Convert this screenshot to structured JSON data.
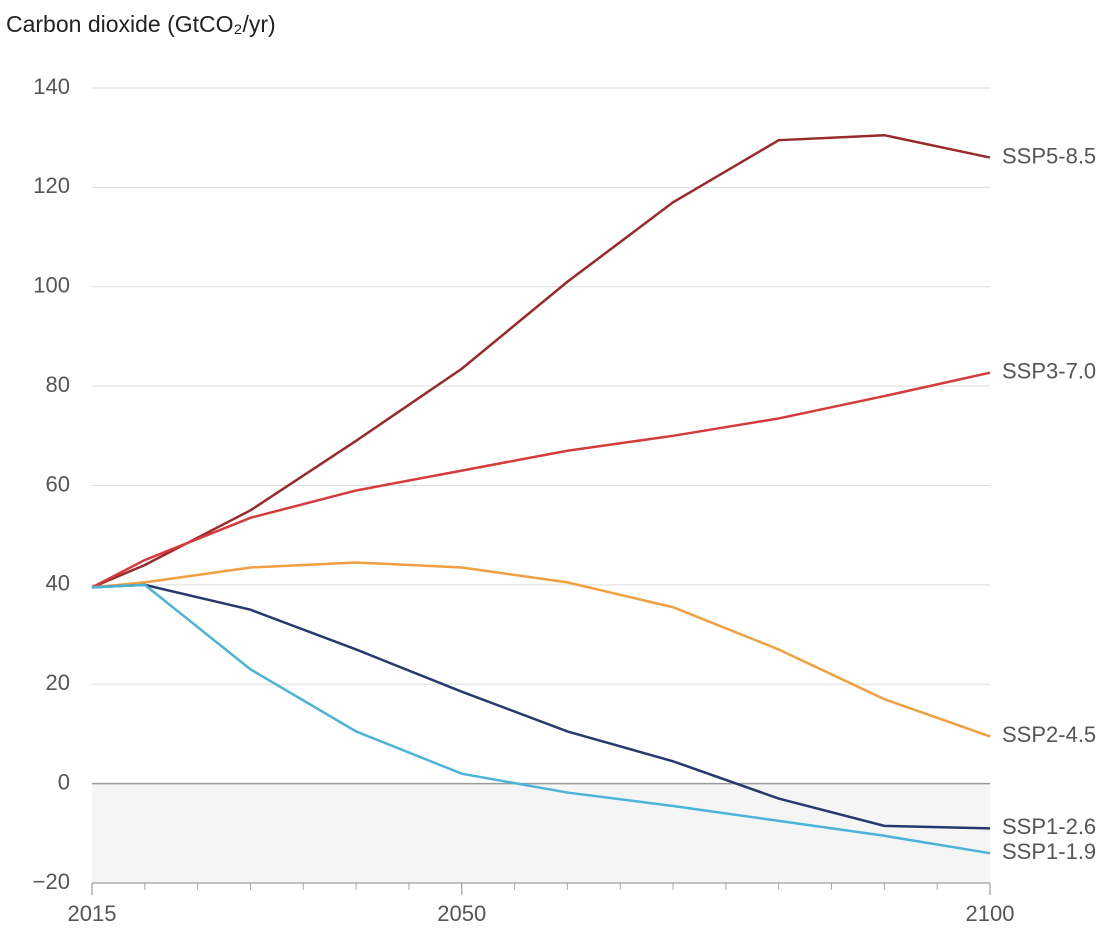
{
  "chart_data": {
    "type": "line",
    "title": "Carbon dioxide (GtCO₂/yr)",
    "x": [
      2015,
      2020,
      2030,
      2040,
      2050,
      2060,
      2070,
      2080,
      2090,
      2100
    ],
    "series": [
      {
        "name": "SSP5-8.5",
        "color": "#9b2a2a",
        "values": [
          39.5,
          44,
          55,
          69,
          83.5,
          101,
          117,
          129.5,
          130.5,
          126
        ]
      },
      {
        "name": "SSP3-7.0",
        "color": "#d63b3b",
        "values": [
          39.5,
          45,
          53.5,
          59,
          63,
          67,
          70,
          73.5,
          78,
          82.7
        ]
      },
      {
        "name": "SSP2-4.5",
        "color": "#f0a040",
        "values": [
          39.5,
          40.5,
          43.5,
          44.5,
          43.5,
          40.5,
          35.5,
          27,
          17,
          9.5
        ]
      },
      {
        "name": "SSP1-2.6",
        "color": "#253a6e",
        "values": [
          39.5,
          40,
          35,
          27,
          18.5,
          10.5,
          4.5,
          -3,
          -8.5,
          -9
        ]
      },
      {
        "name": "SSP1-1.9",
        "color": "#4cb3d9",
        "values": [
          39.5,
          40,
          23,
          10.5,
          2,
          -1.8,
          -4.5,
          -7.5,
          -10.5,
          -14
        ]
      }
    ],
    "xlim": [
      2015,
      2100
    ],
    "xticks": [
      2015,
      2050,
      2100
    ],
    "xminorticks": [
      2020,
      2025,
      2030,
      2035,
      2040,
      2045,
      2055,
      2060,
      2065,
      2070,
      2075,
      2080,
      2085,
      2090,
      2095
    ],
    "ylim": [
      -20,
      140
    ],
    "yticks": [
      {
        "value": -20,
        "label": "−20"
      },
      0,
      20,
      40,
      60,
      80,
      100,
      120,
      140
    ],
    "grid": true
  }
}
